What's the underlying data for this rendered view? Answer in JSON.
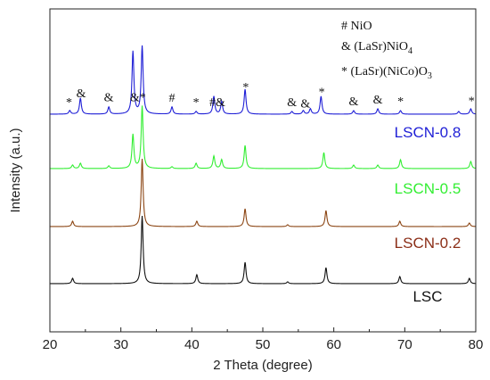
{
  "chart_data": {
    "type": "line",
    "xlabel": "2 Theta (degree)",
    "ylabel": "Intensity (a.u.)",
    "xlim": [
      20,
      80
    ],
    "x_ticks": [
      "20",
      "30",
      "40",
      "50",
      "60",
      "70",
      "80"
    ],
    "y_ticks_shown": false,
    "grid": false,
    "legend": {
      "position": "top-right",
      "entries": [
        {
          "symbol": "#",
          "text": "NiO"
        },
        {
          "symbol": "&",
          "text": "(LaSr)NiO",
          "subscript": "4"
        },
        {
          "symbol": "*",
          "text": "(LaSr)(NiCo)O",
          "subscript": "3"
        }
      ]
    },
    "series": [
      {
        "name": "LSCN-0.8",
        "color": "#1f1fd6",
        "label_color": "#1f1fd6",
        "baseline": 128,
        "peaks": [
          [
            22.8,
            2
          ],
          [
            24.3,
            9
          ],
          [
            28.3,
            4
          ],
          [
            31.7,
            35
          ],
          [
            33.0,
            38
          ],
          [
            37.2,
            4
          ],
          [
            40.6,
            1.5
          ],
          [
            43.1,
            10
          ],
          [
            44.2,
            7
          ],
          [
            47.5,
            14
          ],
          [
            54.1,
            1.5
          ],
          [
            55.7,
            2
          ],
          [
            56.7,
            3
          ],
          [
            58.2,
            10
          ],
          [
            62.8,
            2
          ],
          [
            66.2,
            3
          ],
          [
            69.4,
            2
          ],
          [
            77.6,
            1.5
          ],
          [
            79.3,
            3
          ]
        ]
      },
      {
        "name": "LSCN-0.5",
        "color": "#33ee33",
        "label_color": "#33ee33",
        "baseline": 189,
        "peaks": [
          [
            23.2,
            2
          ],
          [
            24.3,
            3
          ],
          [
            28.3,
            1.5
          ],
          [
            31.7,
            19
          ],
          [
            33.0,
            35
          ],
          [
            37.2,
            1
          ],
          [
            40.6,
            3
          ],
          [
            43.1,
            7
          ],
          [
            44.2,
            5
          ],
          [
            47.5,
            13
          ],
          [
            58.6,
            9
          ],
          [
            62.8,
            2
          ],
          [
            66.2,
            2
          ],
          [
            69.4,
            5
          ],
          [
            79.3,
            4
          ]
        ]
      },
      {
        "name": "LSCN-0.2",
        "color": "#8b4513",
        "label_color": "#8b2e17",
        "baseline": 254,
        "peaks": [
          [
            23.2,
            3
          ],
          [
            33.0,
            38
          ],
          [
            40.7,
            3
          ],
          [
            47.5,
            10
          ],
          [
            53.5,
            1
          ],
          [
            58.9,
            9
          ],
          [
            69.3,
            3
          ],
          [
            79.1,
            2
          ]
        ]
      },
      {
        "name": "LSC",
        "color": "#111111",
        "label_color": "#111111",
        "baseline": 318,
        "peaks": [
          [
            23.2,
            3
          ],
          [
            33.0,
            38
          ],
          [
            40.7,
            5
          ],
          [
            47.5,
            12
          ],
          [
            53.5,
            1
          ],
          [
            58.9,
            9
          ],
          [
            69.3,
            4
          ],
          [
            79.1,
            3
          ]
        ]
      }
    ],
    "annotations": [
      {
        "text": "*",
        "x": 22.7,
        "series": "LSCN-0.8"
      },
      {
        "text": "&",
        "x": 24.4,
        "series": "LSCN-0.8"
      },
      {
        "text": "&",
        "x": 28.3,
        "series": "LSCN-0.8"
      },
      {
        "text": "&*",
        "x": 32.4,
        "series": "LSCN-0.8"
      },
      {
        "text": "#",
        "x": 37.2,
        "series": "LSCN-0.8"
      },
      {
        "text": "*",
        "x": 40.6,
        "series": "LSCN-0.8"
      },
      {
        "text": "#&",
        "x": 43.6,
        "series": "LSCN-0.8"
      },
      {
        "text": "*",
        "x": 47.6,
        "series": "LSCN-0.8"
      },
      {
        "text": "&",
        "x": 54.1,
        "series": "LSCN-0.8"
      },
      {
        "text": "&",
        "x": 56.0,
        "series": "LSCN-0.8"
      },
      {
        "text": "*",
        "x": 58.3,
        "series": "LSCN-0.8"
      },
      {
        "text": "&",
        "x": 62.8,
        "series": "LSCN-0.8"
      },
      {
        "text": "&",
        "x": 66.2,
        "series": "LSCN-0.8"
      },
      {
        "text": "*",
        "x": 69.4,
        "series": "LSCN-0.8"
      },
      {
        "text": "*",
        "x": 79.4,
        "series": "LSCN-0.8"
      }
    ]
  }
}
